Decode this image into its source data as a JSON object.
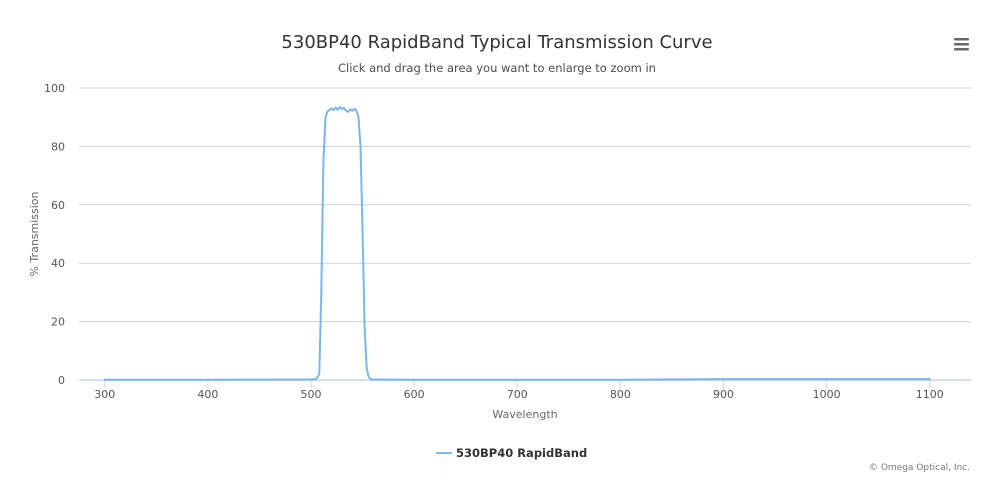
{
  "chart_data": {
    "type": "line",
    "title": "530BP40 RapidBand Typical Transmission Curve",
    "subtitle": "Click and drag the area you want to enlarge to zoom in",
    "xlabel": "Wavelength",
    "ylabel": "% Transmission",
    "xlim": [
      275,
      1140
    ],
    "ylim": [
      0,
      100
    ],
    "x_ticks": [
      300,
      400,
      500,
      600,
      700,
      800,
      900,
      1000,
      1100
    ],
    "y_ticks": [
      0,
      20,
      40,
      60,
      80,
      100
    ],
    "grid": true,
    "legend_position": "bottom-center",
    "series_color": "#7cb5ec",
    "credits": "© Omega Optical, Inc.",
    "series": [
      {
        "name": "530BP40 RapidBand",
        "x": [
          300,
          400,
          500,
          505,
          508,
          510,
          512,
          514,
          516,
          518,
          520,
          522,
          524,
          526,
          528,
          530,
          532,
          534,
          536,
          538,
          540,
          542,
          544,
          546,
          548,
          550,
          552,
          554,
          556,
          558,
          560,
          600,
          700,
          800,
          900,
          1000,
          1100
        ],
        "y": [
          0.1,
          0.1,
          0.2,
          0.3,
          2,
          30,
          75,
          90,
          92,
          92.5,
          93,
          92.5,
          93.3,
          92.5,
          93.5,
          92.8,
          93.2,
          92.2,
          91.8,
          92.7,
          92.2,
          92.8,
          92.3,
          90,
          80,
          50,
          18,
          4,
          1,
          0.3,
          0.2,
          0.1,
          0.1,
          0.1,
          0.3,
          0.3,
          0.3
        ]
      }
    ]
  }
}
